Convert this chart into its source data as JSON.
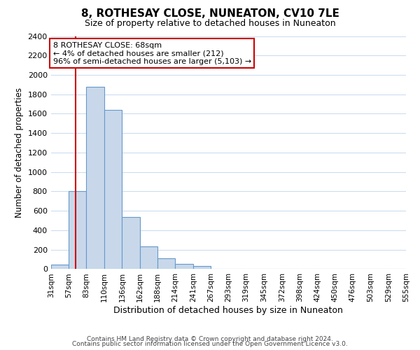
{
  "title": "8, ROTHESAY CLOSE, NUNEATON, CV10 7LE",
  "subtitle": "Size of property relative to detached houses in Nuneaton",
  "xlabel": "Distribution of detached houses by size in Nuneaton",
  "ylabel": "Number of detached properties",
  "bin_labels": [
    "31sqm",
    "57sqm",
    "83sqm",
    "110sqm",
    "136sqm",
    "162sqm",
    "188sqm",
    "214sqm",
    "241sqm",
    "267sqm",
    "293sqm",
    "319sqm",
    "345sqm",
    "372sqm",
    "398sqm",
    "424sqm",
    "450sqm",
    "476sqm",
    "503sqm",
    "529sqm",
    "555sqm"
  ],
  "bin_edges": [
    31,
    57,
    83,
    110,
    136,
    162,
    188,
    214,
    241,
    267,
    293,
    319,
    345,
    372,
    398,
    424,
    450,
    476,
    503,
    529,
    555
  ],
  "bar_heights": [
    50,
    800,
    1880,
    1640,
    540,
    235,
    110,
    55,
    35,
    5,
    0,
    0,
    0,
    0,
    0,
    0,
    0,
    0,
    0,
    0
  ],
  "bar_color": "#c8d8ea",
  "bar_edgecolor": "#6699cc",
  "ylim": [
    0,
    2400
  ],
  "yticks": [
    0,
    200,
    400,
    600,
    800,
    1000,
    1200,
    1400,
    1600,
    1800,
    2000,
    2200,
    2400
  ],
  "property_size": 68,
  "vline_color": "#cc0000",
  "annotation_line1": "8 ROTHESAY CLOSE: 68sqm",
  "annotation_line2": "← 4% of detached houses are smaller (212)",
  "annotation_line3": "96% of semi-detached houses are larger (5,103) →",
  "annotation_box_edgecolor": "#cc0000",
  "annotation_box_facecolor": "#ffffff",
  "footer_line1": "Contains HM Land Registry data © Crown copyright and database right 2024.",
  "footer_line2": "Contains public sector information licensed under the Open Government Licence v3.0.",
  "background_color": "#ffffff",
  "grid_color": "#ccddee"
}
